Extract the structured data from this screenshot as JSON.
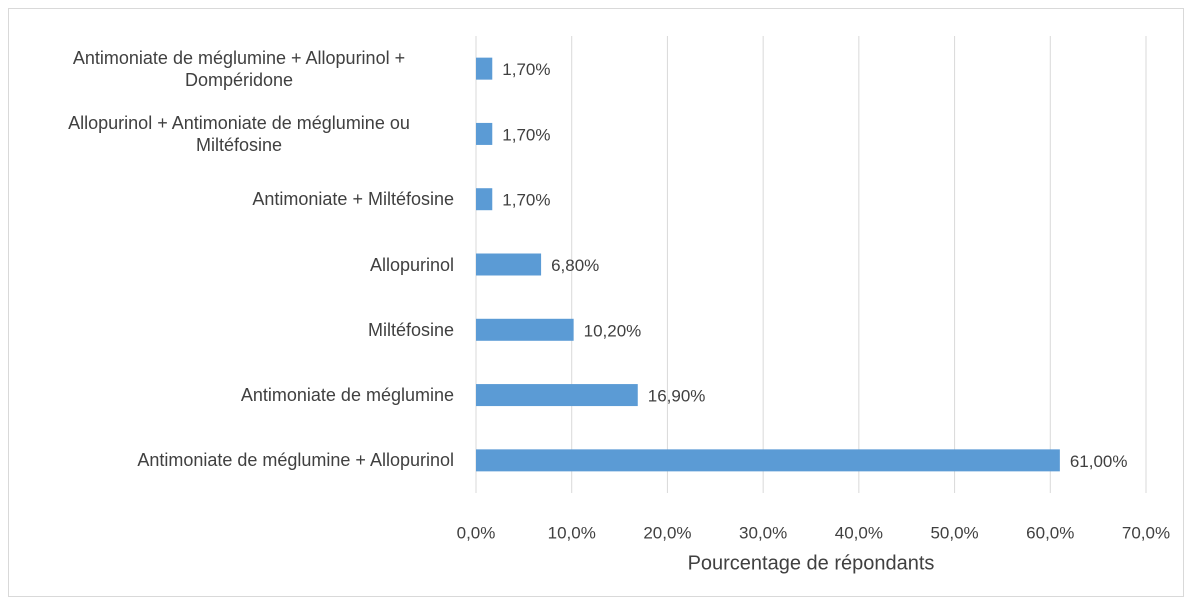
{
  "chart_data": {
    "type": "barh",
    "categories": [
      "Antimoniate de méglumine + Allopurinol",
      "Antimoniate de méglumine",
      "Miltéfosine",
      "Allopurinol",
      "Antimoniate + Miltéfosine",
      "Allopurinol + Antimoniate de méglumine ou Miltéfosine",
      "Antimoniate de méglumine + Allopurinol + Dompéridone"
    ],
    "values": [
      61.0,
      16.9,
      10.2,
      6.8,
      1.7,
      1.7,
      1.7
    ],
    "value_labels": [
      "61,00%",
      "16,90%",
      "10,20%",
      "6,80%",
      "1,70%",
      "1,70%",
      "1,70%"
    ],
    "color": "#5b9bd5",
    "xlabel": "Pourcentage de répondants",
    "xlim": [
      0,
      70
    ],
    "xticks": [
      {
        "value": 0,
        "label": "0,0%"
      },
      {
        "value": 10,
        "label": "10,0%"
      },
      {
        "value": 20,
        "label": "20,0%"
      },
      {
        "value": 30,
        "label": "30,0%"
      },
      {
        "value": 40,
        "label": "40,0%"
      },
      {
        "value": 50,
        "label": "50,0%"
      },
      {
        "value": 60,
        "label": "60,0%"
      },
      {
        "value": 70,
        "label": "70,0%"
      }
    ],
    "grid": true
  }
}
